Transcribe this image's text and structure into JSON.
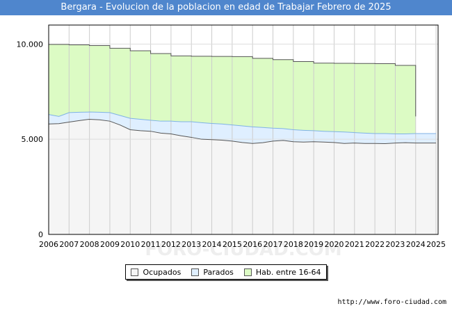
{
  "title": "Bergara - Evolucion de la poblacion en edad de Trabajar Febrero de 2025",
  "source": "http://www.foro-ciudad.com",
  "watermark": "FORO-CIUDAD.COM",
  "colors": {
    "title_bg": "#4f86cd",
    "ocupados_fill": "#f5f5f5",
    "ocupados_line": "#555555",
    "parados_fill": "#dfefff",
    "parados_line": "#7fb2e5",
    "hab_fill": "#dcfbc4",
    "hab_line": "#555555"
  },
  "chart_data": {
    "type": "area",
    "xlim": [
      2006,
      2025.1
    ],
    "ylim": [
      0,
      11000
    ],
    "x_ticks": [
      "2006",
      "2007",
      "2008",
      "2009",
      "2010",
      "2011",
      "2012",
      "2013",
      "2014",
      "2015",
      "2016",
      "2017",
      "2018",
      "2019",
      "2020",
      "2021",
      "2022",
      "2023",
      "2024",
      "2025"
    ],
    "y_ticks": [
      {
        "value": 0,
        "label": "0"
      },
      {
        "value": 5000,
        "label": "5.000"
      },
      {
        "value": 10000,
        "label": "10.000"
      }
    ],
    "grid": true,
    "legend_position": "bottom",
    "series": [
      {
        "name": "Ocupados",
        "x": [
          2006,
          2006.5,
          2007,
          2007.5,
          2008,
          2008.5,
          2009,
          2009.5,
          2010,
          2010.5,
          2011,
          2011.5,
          2012,
          2012.5,
          2013,
          2013.5,
          2014,
          2014.5,
          2015,
          2015.5,
          2016,
          2016.5,
          2017,
          2017.5,
          2018,
          2018.5,
          2019,
          2019.5,
          2020,
          2020.5,
          2021,
          2021.5,
          2022,
          2022.5,
          2023,
          2023.5,
          2024,
          2024.5,
          2025
        ],
        "values": [
          5800,
          5820,
          5900,
          5980,
          6050,
          6020,
          5950,
          5750,
          5500,
          5450,
          5420,
          5320,
          5280,
          5180,
          5100,
          5000,
          4980,
          4950,
          4900,
          4830,
          4780,
          4820,
          4900,
          4940,
          4870,
          4850,
          4870,
          4850,
          4830,
          4780,
          4800,
          4780,
          4780,
          4770,
          4800,
          4820,
          4800,
          4800,
          4800
        ]
      },
      {
        "name": "Parados",
        "x": [
          2006,
          2006.5,
          2007,
          2007.5,
          2008,
          2008.5,
          2009,
          2009.5,
          2010,
          2010.5,
          2011,
          2011.5,
          2012,
          2012.5,
          2013,
          2013.5,
          2014,
          2014.5,
          2015,
          2015.5,
          2016,
          2016.5,
          2017,
          2017.5,
          2018,
          2018.5,
          2019,
          2019.5,
          2020,
          2020.5,
          2021,
          2021.5,
          2022,
          2022.5,
          2023,
          2023.5,
          2024,
          2024.5,
          2025
        ],
        "values": [
          6300,
          6200,
          6400,
          6420,
          6430,
          6420,
          6400,
          6250,
          6100,
          6050,
          6000,
          5950,
          5950,
          5920,
          5920,
          5870,
          5830,
          5800,
          5750,
          5700,
          5650,
          5620,
          5580,
          5560,
          5500,
          5470,
          5450,
          5420,
          5400,
          5380,
          5350,
          5320,
          5300,
          5300,
          5280,
          5280,
          5300,
          5300,
          5300
        ]
      },
      {
        "name": "Hab. entre 16-64",
        "x": [
          2006,
          2007,
          2008,
          2009,
          2010,
          2011,
          2012,
          2013,
          2014,
          2015,
          2016,
          2017,
          2018,
          2019,
          2020,
          2021,
          2022,
          2023,
          2024
        ],
        "values": [
          9980,
          9960,
          9920,
          9780,
          9650,
          9500,
          9380,
          9360,
          9350,
          9340,
          9250,
          9180,
          9080,
          9000,
          8990,
          8980,
          8970,
          8880,
          6200
        ]
      }
    ]
  }
}
